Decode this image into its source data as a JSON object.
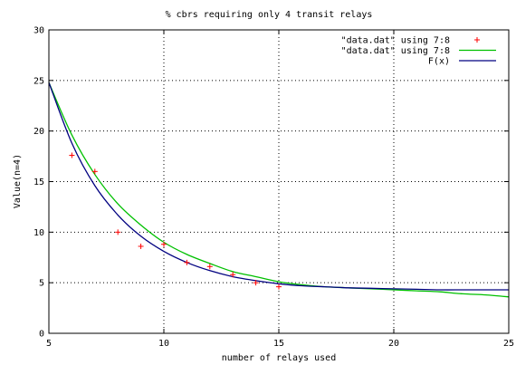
{
  "chart_data": {
    "type": "scatter",
    "title": "% cbrs requiring only 4 transit relays",
    "xlabel": "number of relays used",
    "ylabel": "Value(n=4)",
    "xlim": [
      5,
      25
    ],
    "ylim": [
      0,
      30
    ],
    "x_ticks": [
      "5",
      "10",
      "15",
      "20",
      "25"
    ],
    "y_ticks": [
      "0",
      "5",
      "10",
      "15",
      "20",
      "25",
      "30"
    ],
    "grid": true,
    "legend_position": "top-right",
    "series": [
      {
        "name": "\"data.dat\" using 7:8",
        "style": "points",
        "color": "#ff0000",
        "x": [
          6,
          7,
          8,
          9,
          10,
          11,
          12,
          13,
          14,
          15
        ],
        "y": [
          17.6,
          16.0,
          10.0,
          8.6,
          8.8,
          7.0,
          6.6,
          5.8,
          5.0,
          4.6
        ]
      },
      {
        "name": "\"data.dat\" using 7:8",
        "style": "smooth-line",
        "color": "#00c000",
        "x": [
          5,
          6,
          7,
          8,
          9,
          10,
          11,
          12,
          13,
          14,
          15,
          16,
          17,
          18,
          19,
          20,
          21,
          22,
          23,
          24,
          25
        ],
        "y": [
          24.8,
          19.6,
          15.7,
          12.8,
          10.7,
          9.0,
          7.8,
          6.9,
          6.1,
          5.6,
          5.1,
          4.8,
          4.6,
          4.5,
          4.4,
          4.3,
          4.2,
          4.1,
          3.9,
          3.8,
          3.6
        ]
      },
      {
        "name": "F(x)",
        "style": "line",
        "color": "#000080",
        "x": [
          5,
          6,
          7,
          8,
          9,
          10,
          11,
          12,
          13,
          14,
          15,
          16,
          17,
          18,
          19,
          20,
          21,
          22,
          23,
          24,
          25
        ],
        "y": [
          24.8,
          18.8,
          14.6,
          11.7,
          9.6,
          8.1,
          7.0,
          6.2,
          5.6,
          5.2,
          4.9,
          4.7,
          4.6,
          4.5,
          4.45,
          4.4,
          4.35,
          4.3,
          4.3,
          4.3,
          4.3
        ]
      }
    ]
  }
}
